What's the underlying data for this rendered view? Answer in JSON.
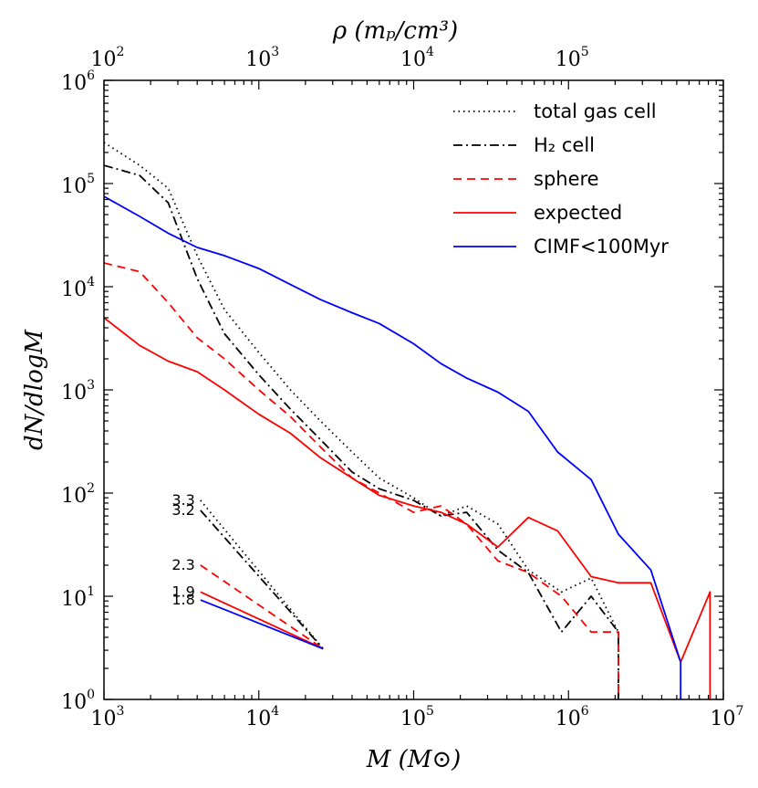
{
  "chart_data": {
    "type": "line",
    "xscale": "log",
    "yscale": "log",
    "xlim": [
      1000,
      10000000
    ],
    "ylim": [
      1,
      1000000
    ],
    "xlabel": "M (M⊙)",
    "ylabel": "dN/dlogM",
    "top_xlabel": "ρ (mₚ/cm³)",
    "x_ticks": [
      {
        "value": 1000,
        "base": "10",
        "exp": "3"
      },
      {
        "value": 10000,
        "base": "10",
        "exp": "4"
      },
      {
        "value": 100000,
        "base": "10",
        "exp": "5"
      },
      {
        "value": 1000000,
        "base": "10",
        "exp": "6"
      },
      {
        "value": 10000000,
        "base": "10",
        "exp": "7"
      }
    ],
    "y_ticks": [
      {
        "value": 1,
        "base": "10",
        "exp": "0"
      },
      {
        "value": 10,
        "base": "10",
        "exp": "1"
      },
      {
        "value": 100,
        "base": "10",
        "exp": "2"
      },
      {
        "value": 1000,
        "base": "10",
        "exp": "3"
      },
      {
        "value": 10000,
        "base": "10",
        "exp": "4"
      },
      {
        "value": 100000,
        "base": "10",
        "exp": "5"
      },
      {
        "value": 1000000,
        "base": "10",
        "exp": "6"
      }
    ],
    "top_ticks": [
      {
        "mass_position": 1000,
        "base": "10",
        "exp": "2"
      },
      {
        "mass_position": 10000,
        "base": "10",
        "exp": "3"
      },
      {
        "mass_position": 100000,
        "base": "10",
        "exp": "4"
      },
      {
        "mass_position": 1000000,
        "base": "10",
        "exp": "5"
      }
    ],
    "series": [
      {
        "name": "total gas cell",
        "color": "#000000",
        "style": "dotted",
        "points": [
          [
            1000,
            250000
          ],
          [
            1700,
            150000
          ],
          [
            2600,
            90000
          ],
          [
            4000,
            20000
          ],
          [
            6000,
            6000
          ],
          [
            10000,
            2300
          ],
          [
            16000,
            1000
          ],
          [
            25000,
            500
          ],
          [
            40000,
            250
          ],
          [
            60000,
            140
          ],
          [
            100000,
            90
          ],
          [
            150000,
            60
          ],
          [
            220000,
            75
          ],
          [
            350000,
            50
          ],
          [
            550000,
            18
          ],
          [
            900000,
            11
          ],
          [
            1400000,
            15
          ],
          [
            2100000,
            4.5
          ],
          [
            2100000,
            0.5
          ]
        ]
      },
      {
        "name": "H₂ cell",
        "color": "#000000",
        "style": "dashdot",
        "points": [
          [
            1000,
            150000
          ],
          [
            1700,
            120000
          ],
          [
            2600,
            65000
          ],
          [
            4000,
            12000
          ],
          [
            6000,
            3500
          ],
          [
            10000,
            1400
          ],
          [
            16000,
            650
          ],
          [
            25000,
            330
          ],
          [
            40000,
            160
          ],
          [
            60000,
            110
          ],
          [
            100000,
            85
          ],
          [
            150000,
            60
          ],
          [
            220000,
            65
          ],
          [
            350000,
            28
          ],
          [
            550000,
            17
          ],
          [
            900000,
            4.5
          ],
          [
            1400000,
            10
          ],
          [
            2100000,
            4.5
          ],
          [
            2100000,
            0.5
          ]
        ]
      },
      {
        "name": "sphere",
        "color": "#ff0000",
        "style": "dashed",
        "points": [
          [
            1000,
            17000
          ],
          [
            1700,
            14000
          ],
          [
            2600,
            7000
          ],
          [
            4000,
            3200
          ],
          [
            6000,
            2000
          ],
          [
            10000,
            1000
          ],
          [
            16000,
            550
          ],
          [
            25000,
            280
          ],
          [
            40000,
            140
          ],
          [
            60000,
            100
          ],
          [
            100000,
            65
          ],
          [
            150000,
            75
          ],
          [
            220000,
            50
          ],
          [
            350000,
            22
          ],
          [
            550000,
            17
          ],
          [
            900000,
            10
          ],
          [
            1400000,
            4.5
          ],
          [
            1800000,
            4.5
          ],
          [
            2100000,
            4.5
          ],
          [
            2100000,
            0.5
          ]
        ]
      },
      {
        "name": "expected",
        "color": "#ff0000",
        "style": "solid",
        "points": [
          [
            1000,
            5000
          ],
          [
            1700,
            2700
          ],
          [
            2600,
            1900
          ],
          [
            4000,
            1500
          ],
          [
            6000,
            1000
          ],
          [
            10000,
            580
          ],
          [
            16000,
            380
          ],
          [
            25000,
            220
          ],
          [
            40000,
            140
          ],
          [
            60000,
            95
          ],
          [
            100000,
            75
          ],
          [
            150000,
            65
          ],
          [
            220000,
            50
          ],
          [
            350000,
            30
          ],
          [
            550000,
            58
          ],
          [
            850000,
            43
          ],
          [
            1400000,
            15.5
          ],
          [
            2100000,
            13.5
          ],
          [
            3400000,
            13.5
          ],
          [
            5300000,
            2.3
          ],
          [
            8200000,
            11
          ],
          [
            8200000,
            0.5
          ]
        ]
      },
      {
        "name": "CIMF<100Myr",
        "color": "#0000ff",
        "style": "solid",
        "points": [
          [
            1000,
            75000
          ],
          [
            1700,
            48000
          ],
          [
            2600,
            33000
          ],
          [
            4000,
            24000
          ],
          [
            6000,
            20000
          ],
          [
            10000,
            15000
          ],
          [
            16000,
            10500
          ],
          [
            25000,
            7500
          ],
          [
            40000,
            5600
          ],
          [
            60000,
            4400
          ],
          [
            100000,
            2800
          ],
          [
            150000,
            1800
          ],
          [
            220000,
            1300
          ],
          [
            350000,
            950
          ],
          [
            550000,
            620
          ],
          [
            850000,
            250
          ],
          [
            1400000,
            135
          ],
          [
            2100000,
            40
          ],
          [
            3400000,
            18
          ],
          [
            5300000,
            2.3
          ],
          [
            5300000,
            0.5
          ]
        ]
      }
    ],
    "slope_indicators": [
      {
        "label": "3.3",
        "color": "#000000",
        "style": "dotted",
        "start": [
          4200,
          85
        ],
        "end": [
          26000,
          3.1
        ]
      },
      {
        "label": "3.2",
        "color": "#000000",
        "style": "dashdot",
        "start": [
          4200,
          68
        ],
        "end": [
          26000,
          3.1
        ]
      },
      {
        "label": "2.3",
        "color": "#ff0000",
        "style": "dashed",
        "start": [
          4200,
          20
        ],
        "end": [
          26000,
          3.1
        ]
      },
      {
        "label": "1.9",
        "color": "#ff0000",
        "style": "solid",
        "start": [
          4200,
          11
        ],
        "end": [
          26000,
          3.1
        ]
      },
      {
        "label": "1.8",
        "color": "#0000ff",
        "style": "solid",
        "start": [
          4200,
          9.2
        ],
        "end": [
          26000,
          3.1
        ]
      }
    ],
    "legend": {
      "position": "upper-right",
      "entries": [
        {
          "label": "total gas cell",
          "color": "#000000",
          "style": "dotted"
        },
        {
          "label": "H₂ cell",
          "color": "#000000",
          "style": "dashdot"
        },
        {
          "label": "sphere",
          "color": "#ff0000",
          "style": "dashed"
        },
        {
          "label": "expected",
          "color": "#ff0000",
          "style": "solid"
        },
        {
          "label": "CIMF<100Myr",
          "color": "#0000ff",
          "style": "solid"
        }
      ]
    }
  }
}
